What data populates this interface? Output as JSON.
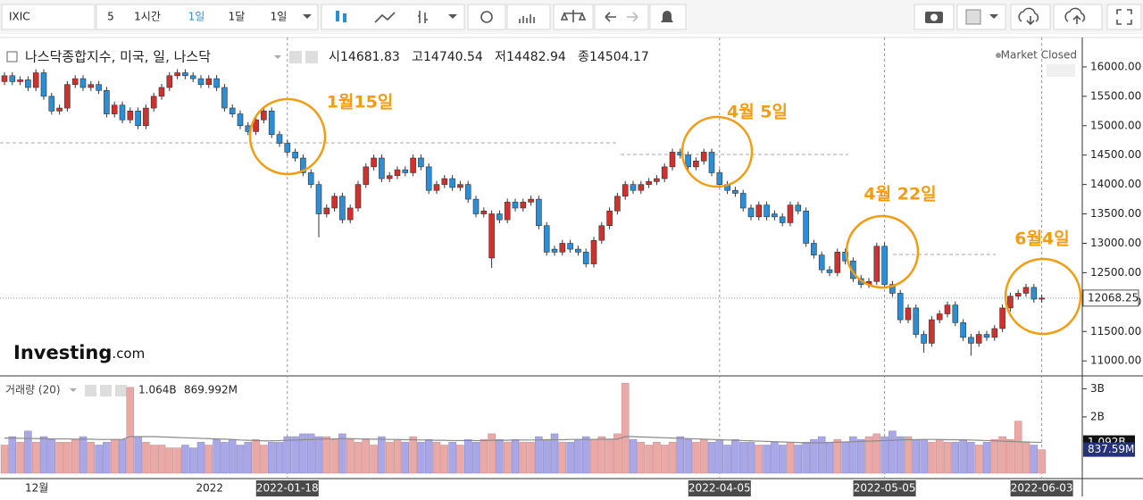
{
  "toolbar": {
    "symbol": "IXIC",
    "items": [
      "5",
      "1시간",
      "1일",
      "1달",
      "1일"
    ]
  },
  "chart_data": {
    "type": "candlestick",
    "title": "나스닥종합지수, 미국, 일, 나스닥",
    "status": "Market Closed",
    "ohlc_legend": [
      {
        "label": "시",
        "value": 14681.83
      },
      {
        "label": "고",
        "value": 14740.54
      },
      {
        "label": "저",
        "value": 14482.94
      },
      {
        "label": "종",
        "value": 14504.17
      }
    ],
    "logo": {
      "name": "Investing",
      "suffix": ".com"
    },
    "up_color": "#d0312d",
    "down_color": "#2a8fd6",
    "volume_up_color": "#e9a9a7",
    "volume_down_color": "#a9a7e6",
    "volume_ma_color": "#8a8a8a",
    "categories": [
      null,
      null,
      null,
      null,
      "12월",
      null,
      null,
      null,
      null,
      null,
      null,
      null,
      null,
      null,
      null,
      null,
      null,
      null,
      null,
      null,
      null,
      null,
      null,
      null,
      null,
      null,
      "2022",
      null,
      null,
      null,
      null,
      null,
      null,
      null,
      null,
      null,
      "2022-01-18",
      null,
      null,
      null,
      null,
      null,
      null,
      null,
      null,
      null,
      null,
      null,
      null,
      null,
      null,
      null,
      null,
      null,
      null,
      null,
      null,
      null,
      null,
      null,
      null,
      null,
      null,
      null,
      null,
      null,
      null,
      null,
      null,
      null,
      null,
      null,
      null,
      null,
      null,
      null,
      null,
      null,
      null,
      null,
      null,
      null,
      null,
      null,
      null,
      null,
      null,
      null,
      null,
      null,
      null,
      "2022-04-05",
      null,
      null,
      null,
      null,
      null,
      null,
      null,
      null,
      null,
      null,
      null,
      null,
      null,
      null,
      null,
      null,
      null,
      null,
      null,
      null,
      "2022-05-05",
      null,
      null,
      null,
      null,
      null,
      null,
      null,
      null,
      null,
      null,
      null,
      null,
      null,
      null,
      null,
      null,
      null,
      null,
      null,
      "2022-06-03"
    ],
    "open": [
      15750,
      15850,
      15750,
      15780,
      15650,
      15900,
      15500,
      15250,
      15300,
      15700,
      15800,
      15650,
      15700,
      15600,
      15200,
      15350,
      15100,
      15250,
      15000,
      15300,
      15500,
      15650,
      15850,
      15900,
      15850,
      15800,
      15700,
      15800,
      15650,
      15300,
      15200,
      15000,
      14900,
      15100,
      15250,
      14850,
      14700,
      14550,
      14450,
      14200,
      14000,
      13500,
      13600,
      13800,
      13400,
      13600,
      14000,
      14300,
      14450,
      14100,
      14150,
      14250,
      14200,
      14450,
      14300,
      13900,
      14000,
      14100,
      13950,
      14000,
      13750,
      13500,
      12750,
      13500,
      13400,
      13700,
      13600,
      13700,
      13750,
      13300,
      12900,
      12850,
      13000,
      12900,
      12850,
      12650,
      13050,
      13300,
      13550,
      13800,
      14000,
      13900,
      14000,
      14050,
      14100,
      14300,
      14550,
      14500,
      14300,
      14400,
      14550,
      14200,
      14000,
      13900,
      13850,
      13600,
      13450,
      13650,
      13500,
      13450,
      13350,
      13650,
      13550,
      13000,
      12800,
      12550,
      12500,
      12850,
      12700,
      12400,
      12300,
      12350,
      12950,
      12300,
      12150,
      11700,
      11900,
      11450,
      11300,
      11700,
      11800,
      11950,
      11650,
      11400,
      11300,
      11450,
      11400,
      11550,
      11900,
      12100,
      12150,
      12250,
      12050
    ],
    "high": [
      15910,
      15910,
      15840,
      15840,
      15960,
      15960,
      15560,
      15360,
      15760,
      15860,
      15860,
      15760,
      15760,
      15660,
      15410,
      15410,
      15310,
      15310,
      15360,
      15560,
      15710,
      15910,
      15960,
      15960,
      15910,
      15860,
      15860,
      15860,
      15710,
      15360,
      15260,
      15060,
      15160,
      15310,
      15310,
      14910,
      14760,
      14610,
      14510,
      14260,
      14060,
      13660,
      13860,
      13860,
      13660,
      14060,
      14360,
      14510,
      14510,
      14210,
      14310,
      14310,
      14510,
      14510,
      14360,
      14060,
      14160,
      14160,
      14060,
      14060,
      13810,
      13610,
      13560,
      13560,
      13760,
      13760,
      13760,
      13810,
      13810,
      13360,
      12960,
      13060,
      13060,
      12960,
      12910,
      13110,
      13360,
      13610,
      13860,
      14060,
      14060,
      14060,
      14110,
      14160,
      14360,
      14610,
      14610,
      14560,
      14460,
      14610,
      14610,
      14260,
      14060,
      13960,
      13910,
      13660,
      13710,
      13710,
      13560,
      13510,
      13710,
      13710,
      13610,
      13060,
      12860,
      12610,
      12910,
      12910,
      12760,
      12460,
      12410,
      13010,
      13010,
      12360,
      12210,
      11960,
      11960,
      11510,
      11760,
      11860,
      12010,
      12010,
      11710,
      11460,
      11510,
      11510,
      11610,
      11960,
      12160,
      12210,
      12310,
      12310,
      12130
    ],
    "low": [
      15690,
      15690,
      15690,
      15590,
      15590,
      15440,
      15190,
      15190,
      15240,
      15640,
      15590,
      15590,
      15540,
      15140,
      15140,
      15040,
      15040,
      14940,
      14940,
      15240,
      15440,
      15590,
      15790,
      15790,
      15740,
      15640,
      15640,
      15590,
      15240,
      15140,
      14940,
      14840,
      14840,
      15040,
      14790,
      14640,
      14490,
      14390,
      14140,
      13940,
      13100,
      13440,
      13540,
      13340,
      13340,
      13540,
      13940,
      14240,
      14040,
      14040,
      14090,
      14140,
      14140,
      14240,
      13840,
      13840,
      13940,
      13890,
      13890,
      13690,
      13440,
      13440,
      12580,
      13340,
      13340,
      13540,
      13540,
      13640,
      13240,
      12790,
      12790,
      12790,
      12840,
      12790,
      12590,
      12590,
      12990,
      13240,
      13490,
      13740,
      13840,
      13840,
      13940,
      13990,
      14040,
      14240,
      14440,
      14240,
      14240,
      14340,
      14140,
      13940,
      13840,
      13790,
      13540,
      13390,
      13390,
      13390,
      13390,
      13290,
      13290,
      13490,
      12940,
      12740,
      12490,
      12440,
      12440,
      12640,
      12340,
      12240,
      12240,
      12290,
      12240,
      12090,
      11640,
      11640,
      11390,
      11140,
      11240,
      11640,
      11740,
      11590,
      11340,
      11090,
      11240,
      11340,
      11340,
      11490,
      11840,
      12040,
      12090,
      11990,
      11990
    ],
    "close": [
      15850,
      15750,
      15780,
      15650,
      15900,
      15500,
      15250,
      15300,
      15700,
      15800,
      15650,
      15700,
      15600,
      15200,
      15350,
      15100,
      15250,
      15000,
      15300,
      15500,
      15650,
      15850,
      15900,
      15850,
      15800,
      15700,
      15800,
      15650,
      15300,
      15200,
      15000,
      14900,
      15100,
      15250,
      14850,
      14700,
      14550,
      14450,
      14200,
      14000,
      13500,
      13600,
      13800,
      13400,
      13600,
      14000,
      14300,
      14450,
      14100,
      14150,
      14250,
      14200,
      14450,
      14300,
      13900,
      14000,
      14100,
      13950,
      14000,
      13750,
      13500,
      13550,
      13500,
      13400,
      13700,
      13600,
      13700,
      13750,
      13300,
      12850,
      12850,
      13000,
      12900,
      12850,
      12650,
      13050,
      13300,
      13550,
      13800,
      14000,
      13900,
      14000,
      14050,
      14100,
      14300,
      14550,
      14500,
      14300,
      14400,
      14550,
      14200,
      14000,
      13900,
      13850,
      13600,
      13450,
      13650,
      13450,
      13450,
      13350,
      13650,
      13550,
      13000,
      12800,
      12550,
      12500,
      12850,
      12700,
      12400,
      12300,
      12350,
      12950,
      12300,
      12150,
      11700,
      11900,
      11450,
      11300,
      11700,
      11800,
      11950,
      11650,
      11400,
      11300,
      11450,
      11400,
      11550,
      11900,
      12100,
      12150,
      12250,
      12050,
      12068.25
    ],
    "ylim": [
      10760,
      16500
    ],
    "yticks": [
      {
        "value": 11000,
        "label": "11000.00"
      },
      {
        "value": 11500,
        "label": "11500.00"
      },
      {
        "value": 12000,
        "label": "12000.00"
      },
      {
        "value": 12500,
        "label": "12500.00"
      },
      {
        "value": 13000,
        "label": "13000.00"
      },
      {
        "value": 13500,
        "label": "13500.00"
      },
      {
        "value": 14000,
        "label": "14000.00"
      },
      {
        "value": 14500,
        "label": "14500.00"
      },
      {
        "value": 15000,
        "label": "15000.00"
      },
      {
        "value": 15500,
        "label": "15500.00"
      },
      {
        "value": 16000,
        "label": "16000.00"
      }
    ],
    "volume_title": "거래량 (20)",
    "volume_legend": [
      "1.064B",
      "869.992M"
    ],
    "volume": [
      1.0,
      1.3,
      1.1,
      1.5,
      1.1,
      1.3,
      1.2,
      1.1,
      1.1,
      1.2,
      1.3,
      1.1,
      1.0,
      1.1,
      1.2,
      1.2,
      3.05,
      1.3,
      1.1,
      1.0,
      1.0,
      0.9,
      0.9,
      1.0,
      0.9,
      1.1,
      1.0,
      1.2,
      1.1,
      1.2,
      1.0,
      1.1,
      1.2,
      1.0,
      1.1,
      1.1,
      1.3,
      1.3,
      1.4,
      1.4,
      1.3,
      1.3,
      1.2,
      1.4,
      1.2,
      1.1,
      1.2,
      1.0,
      1.3,
      1.1,
      1.2,
      1.1,
      1.3,
      1.1,
      1.2,
      1.1,
      1.0,
      1.1,
      1.0,
      1.2,
      1.1,
      1.2,
      1.4,
      1.2,
      1.1,
      1.2,
      1.1,
      1.1,
      1.3,
      1.2,
      1.4,
      1.1,
      1.1,
      1.2,
      1.3,
      1.2,
      1.3,
      1.2,
      1.4,
      3.2,
      1.2,
      1.1,
      1.0,
      1.1,
      1.0,
      1.1,
      1.3,
      1.2,
      1.1,
      1.2,
      1.1,
      1.2,
      1.0,
      1.2,
      1.1,
      1.1,
      1.0,
      1.0,
      1.1,
      1.0,
      1.1,
      1.0,
      1.1,
      1.2,
      1.3,
      1.1,
      1.2,
      1.1,
      1.3,
      1.2,
      1.3,
      1.4,
      1.3,
      1.5,
      1.3,
      1.3,
      1.2,
      1.2,
      1.1,
      1.2,
      1.1,
      1.1,
      1.2,
      1.1,
      1.0,
      1.1,
      1.2,
      1.3,
      1.2,
      1.85,
      1.1,
      1.0,
      0.83759
    ],
    "volume_ma": [
      1.25,
      1.25,
      1.24,
      1.24,
      1.23,
      1.23,
      1.22,
      1.22,
      1.22,
      1.21,
      1.21,
      1.21,
      1.2,
      1.2,
      1.2,
      1.2,
      1.3,
      1.3,
      1.3,
      1.3,
      1.29,
      1.28,
      1.27,
      1.26,
      1.25,
      1.24,
      1.23,
      1.22,
      1.21,
      1.2,
      1.18,
      1.17,
      1.16,
      1.15,
      1.15,
      1.16,
      1.17,
      1.18,
      1.19,
      1.2,
      1.21,
      1.22,
      1.22,
      1.23,
      1.23,
      1.22,
      1.22,
      1.21,
      1.21,
      1.2,
      1.2,
      1.19,
      1.19,
      1.18,
      1.18,
      1.17,
      1.17,
      1.16,
      1.16,
      1.16,
      1.16,
      1.16,
      1.17,
      1.17,
      1.17,
      1.18,
      1.18,
      1.18,
      1.18,
      1.19,
      1.19,
      1.19,
      1.2,
      1.2,
      1.2,
      1.2,
      1.21,
      1.21,
      1.21,
      1.3,
      1.3,
      1.29,
      1.28,
      1.27,
      1.26,
      1.25,
      1.24,
      1.23,
      1.22,
      1.21,
      1.2,
      1.19,
      1.18,
      1.17,
      1.16,
      1.15,
      1.14,
      1.13,
      1.12,
      1.11,
      1.1,
      1.09,
      1.08,
      1.08,
      1.08,
      1.09,
      1.1,
      1.11,
      1.12,
      1.13,
      1.14,
      1.15,
      1.16,
      1.17,
      1.18,
      1.19,
      1.19,
      1.2,
      1.2,
      1.2,
      1.19,
      1.19,
      1.18,
      1.18,
      1.17,
      1.16,
      1.15,
      1.14,
      1.13,
      1.12,
      1.11,
      1.1,
      1.092
    ],
    "vlim": [
      0,
      3.3
    ],
    "vticks": [
      {
        "value": 2,
        "label": "2B"
      },
      {
        "value": 3,
        "label": "3B"
      }
    ],
    "volume_markers": [
      {
        "value": 1.092,
        "label": "1.092B",
        "color": "#111111"
      },
      {
        "value": 0.83759,
        "label": "837.59M",
        "color": "#26327a"
      }
    ],
    "annotations": [
      "1월15일",
      "4월 5일",
      "4월 22일",
      "6월4일"
    ],
    "annotation_color": "#f39c12"
  }
}
